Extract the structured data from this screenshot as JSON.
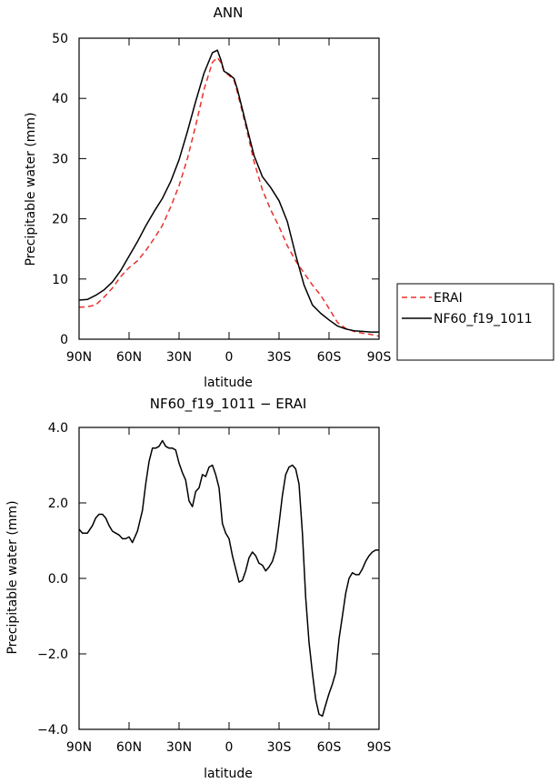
{
  "chart_data": [
    {
      "type": "line",
      "title": "ANN",
      "xlabel": "latitude",
      "ylabel": "Precipitable water (mm)",
      "xlim": [
        90,
        -90
      ],
      "ylim": [
        0,
        50
      ],
      "x_ticks": [
        90,
        60,
        30,
        0,
        -30,
        -60,
        -90
      ],
      "x_tick_labels": [
        "90N",
        "60N",
        "30N",
        "0",
        "30S",
        "60S",
        "90S"
      ],
      "y_ticks": [
        0,
        10,
        20,
        30,
        40,
        50
      ],
      "y_tick_labels": [
        "0",
        "10",
        "20",
        "30",
        "40",
        "50"
      ],
      "legend": [
        {
          "name": "ERAI",
          "color": "#e8312b",
          "dash": true
        },
        {
          "name": "NF60_f19_1011",
          "color": "#000000",
          "dash": false
        }
      ],
      "series": [
        {
          "name": "NF60_f19_1011",
          "color": "#000000",
          "x": [
            90,
            85,
            80,
            75,
            70,
            65,
            60,
            55,
            50,
            45,
            40,
            35,
            30,
            25,
            20,
            15,
            10,
            7,
            5,
            3,
            0,
            -3,
            -5,
            -10,
            -15,
            -20,
            -25,
            -30,
            -35,
            -40,
            -45,
            -50,
            -55,
            -60,
            -65,
            -70,
            -75,
            -80,
            -85,
            -90
          ],
          "y": [
            6.5,
            6.6,
            7.3,
            8.2,
            9.5,
            11.4,
            13.8,
            16.2,
            18.8,
            21.2,
            23.4,
            26.2,
            29.8,
            34.5,
            39.5,
            44.2,
            47.6,
            48.0,
            46.5,
            44.5,
            44.0,
            43.3,
            41.5,
            36.0,
            30.5,
            27.0,
            25.2,
            23.0,
            19.5,
            14.0,
            9.0,
            5.7,
            4.3,
            3.2,
            2.2,
            1.7,
            1.4,
            1.3,
            1.2,
            1.2
          ]
        },
        {
          "name": "ERAI",
          "color": "#e8312b",
          "x": [
            90,
            85,
            80,
            75,
            70,
            65,
            60,
            55,
            50,
            45,
            40,
            35,
            30,
            25,
            20,
            15,
            10,
            7,
            5,
            3,
            0,
            -3,
            -5,
            -10,
            -15,
            -20,
            -25,
            -30,
            -35,
            -40,
            -45,
            -50,
            -55,
            -60,
            -65,
            -70,
            -75,
            -80,
            -85,
            -90
          ],
          "y": [
            5.3,
            5.4,
            5.7,
            7.0,
            8.5,
            10.4,
            11.9,
            13.0,
            14.7,
            16.7,
            18.9,
            22.0,
            25.5,
            30.0,
            35.5,
            41.5,
            46.0,
            46.8,
            46.0,
            44.5,
            43.8,
            43.0,
            41.0,
            35.5,
            29.5,
            24.8,
            21.5,
            18.7,
            15.5,
            13.0,
            11.0,
            9.0,
            7.3,
            5.1,
            2.8,
            1.8,
            1.3,
            1.0,
            0.8,
            0.5
          ]
        }
      ]
    },
    {
      "type": "line",
      "title": "NF60_f19_1011 − ERAI",
      "xlabel": "latitude",
      "ylabel": "Precipitable water (mm)",
      "xlim": [
        90,
        -90
      ],
      "ylim": [
        -4,
        4
      ],
      "x_ticks": [
        90,
        60,
        30,
        0,
        -30,
        -60,
        -90
      ],
      "x_tick_labels": [
        "90N",
        "60N",
        "30N",
        "0",
        "30S",
        "60S",
        "90S"
      ],
      "y_ticks": [
        4,
        2,
        0,
        -2,
        -4
      ],
      "y_tick_labels": [
        "4.0",
        "2.0",
        "0.0",
        "−2.0",
        "−4.0"
      ],
      "series": [
        {
          "name": "NF60_f19_1011 − ERAI",
          "color": "#000000",
          "x": [
            90,
            88,
            85,
            82,
            80,
            78,
            76,
            74,
            72,
            70,
            68,
            66,
            64,
            62,
            60,
            58,
            55,
            52,
            50,
            48,
            46,
            44,
            42,
            40,
            38,
            36,
            34,
            32,
            30,
            28,
            26,
            24,
            22,
            20,
            18,
            16,
            14,
            12,
            10,
            8,
            6,
            4,
            2,
            0,
            -2,
            -4,
            -6,
            -8,
            -10,
            -12,
            -14,
            -16,
            -18,
            -20,
            -22,
            -24,
            -26,
            -28,
            -30,
            -32,
            -34,
            -36,
            -38,
            -40,
            -42,
            -44,
            -46,
            -48,
            -50,
            -52,
            -54,
            -56,
            -58,
            -60,
            -62,
            -64,
            -66,
            -68,
            -70,
            -72,
            -74,
            -76,
            -78,
            -80,
            -82,
            -84,
            -86,
            -88,
            -90
          ],
          "y": [
            1.3,
            1.2,
            1.2,
            1.4,
            1.6,
            1.7,
            1.7,
            1.6,
            1.4,
            1.25,
            1.2,
            1.15,
            1.05,
            1.05,
            1.1,
            0.95,
            1.25,
            1.8,
            2.5,
            3.1,
            3.45,
            3.45,
            3.5,
            3.65,
            3.5,
            3.45,
            3.45,
            3.4,
            3.05,
            2.8,
            2.6,
            2.05,
            1.9,
            2.3,
            2.4,
            2.75,
            2.7,
            2.95,
            3.0,
            2.75,
            2.4,
            1.45,
            1.2,
            1.05,
            0.6,
            0.25,
            -0.1,
            -0.05,
            0.2,
            0.55,
            0.7,
            0.6,
            0.4,
            0.35,
            0.2,
            0.3,
            0.45,
            0.75,
            1.45,
            2.2,
            2.75,
            2.95,
            3.0,
            2.9,
            2.5,
            1.2,
            -0.5,
            -1.7,
            -2.5,
            -3.2,
            -3.6,
            -3.65,
            -3.35,
            -3.05,
            -2.8,
            -2.5,
            -1.6,
            -1.0,
            -0.4,
            0.0,
            0.15,
            0.1,
            0.1,
            0.25,
            0.45,
            0.6,
            0.7,
            0.75,
            0.75
          ]
        }
      ]
    }
  ]
}
